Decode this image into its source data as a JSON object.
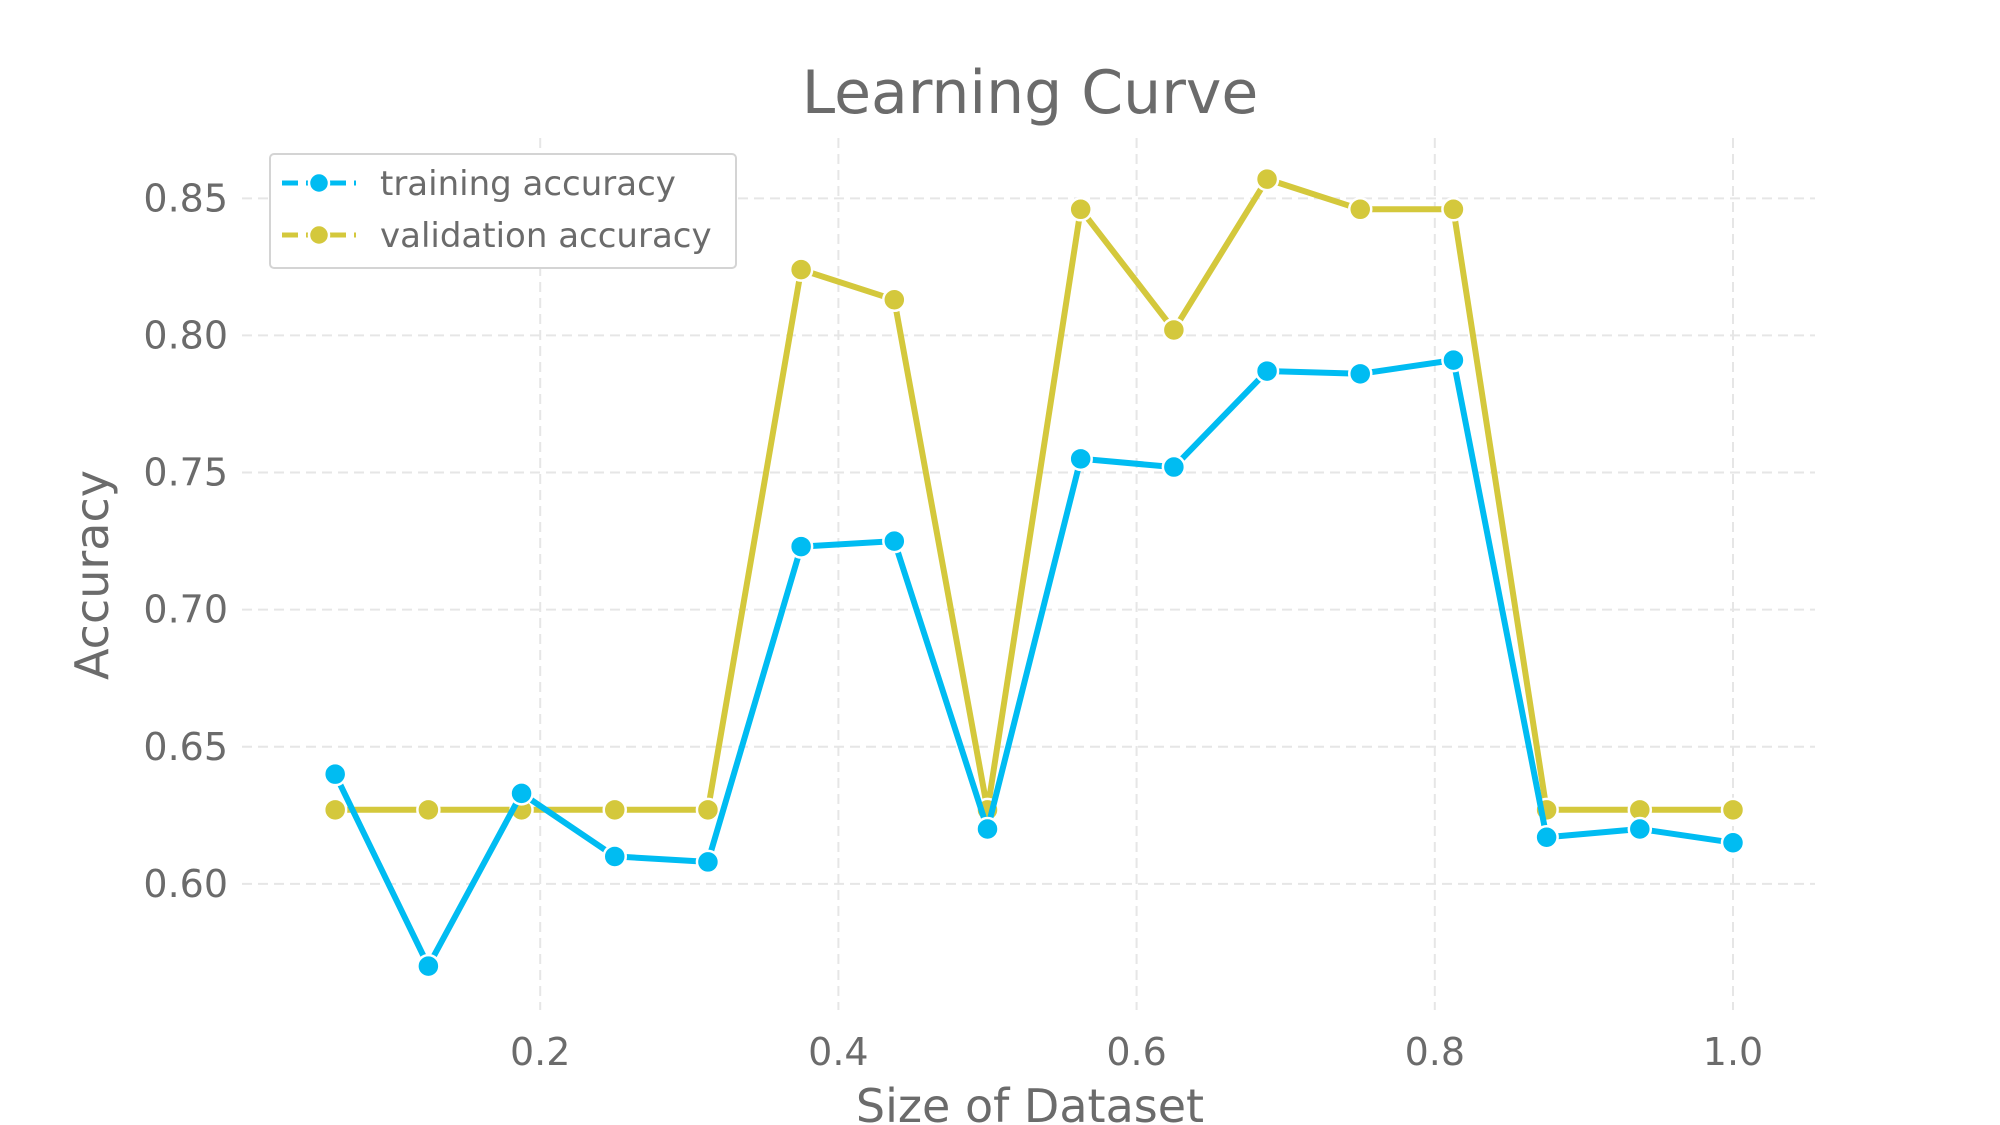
{
  "chart_data": {
    "type": "line",
    "title": "Learning Curve",
    "xlabel": "Size of Dataset",
    "ylabel": "Accuracy",
    "xlim": [
      0.0,
      1.055
    ],
    "ylim": [
      0.554,
      0.872
    ],
    "xticks": [
      {
        "value": 0.2,
        "label": "0.2"
      },
      {
        "value": 0.4,
        "label": "0.4"
      },
      {
        "value": 0.6,
        "label": "0.6"
      },
      {
        "value": 0.8,
        "label": "0.8"
      },
      {
        "value": 1.0,
        "label": "1.0"
      }
    ],
    "yticks": [
      {
        "value": 0.6,
        "label": "0.60"
      },
      {
        "value": 0.65,
        "label": "0.65"
      },
      {
        "value": 0.7,
        "label": "0.70"
      },
      {
        "value": 0.75,
        "label": "0.75"
      },
      {
        "value": 0.8,
        "label": "0.80"
      },
      {
        "value": 0.85,
        "label": "0.85"
      }
    ],
    "grid": true,
    "legend_position": "top-left",
    "x": [
      0.0625,
      0.125,
      0.1875,
      0.25,
      0.3125,
      0.375,
      0.4375,
      0.5,
      0.5625,
      0.625,
      0.6875,
      0.75,
      0.8125,
      0.875,
      0.9375,
      1.0
    ],
    "series": [
      {
        "name": "training accuracy",
        "color": "#00bcf2",
        "values": [
          0.64,
          0.57,
          0.633,
          0.61,
          0.608,
          0.723,
          0.725,
          0.62,
          0.755,
          0.752,
          0.787,
          0.786,
          0.791,
          0.617,
          0.62,
          0.615
        ]
      },
      {
        "name": "validation accuracy",
        "color": "#d4c83c",
        "values": [
          0.627,
          0.627,
          0.627,
          0.627,
          0.627,
          0.824,
          0.813,
          0.627,
          0.846,
          0.802,
          0.857,
          0.846,
          0.846,
          0.627,
          0.627,
          0.627
        ]
      }
    ]
  }
}
